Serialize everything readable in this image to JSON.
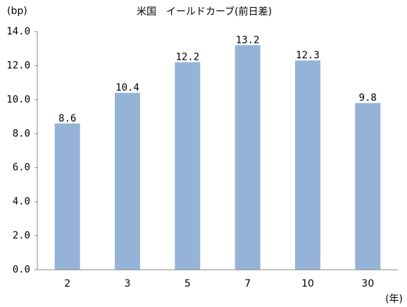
{
  "chart_data": {
    "type": "bar",
    "title": "米国　イールドカーブ(前日差)",
    "y_label": "(bp)",
    "x_label": "(年)",
    "categories": [
      "2",
      "3",
      "5",
      "7",
      "10",
      "30"
    ],
    "values": [
      8.6,
      10.4,
      12.2,
      13.2,
      12.3,
      9.8
    ],
    "color": "#95b3d7",
    "ylim": [
      0,
      14
    ],
    "yticks": [
      {
        "value": 0,
        "label": "0.0"
      },
      {
        "value": 2,
        "label": "2.0"
      },
      {
        "value": 4,
        "label": "4.0"
      },
      {
        "value": 6,
        "label": "6.0"
      },
      {
        "value": 8,
        "label": "8.0"
      },
      {
        "value": 10,
        "label": "10.0"
      },
      {
        "value": 12,
        "label": "12.0"
      },
      {
        "value": 14,
        "label": "14.0"
      }
    ],
    "grid": false
  }
}
